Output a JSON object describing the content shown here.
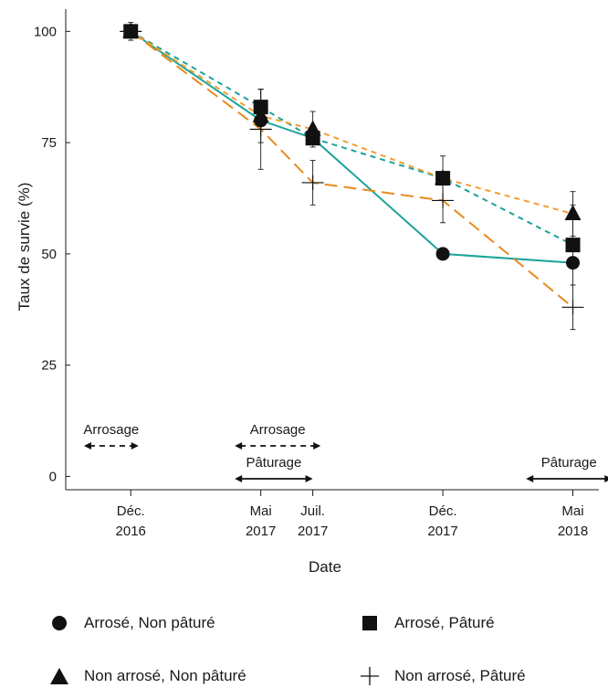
{
  "chart_data": {
    "type": "line",
    "title": "",
    "xlabel": "Date",
    "ylabel": "Taux de survie (%)",
    "ylim": [
      -3,
      105
    ],
    "yticks": [
      0,
      25,
      50,
      75,
      100
    ],
    "ytick_labels": [
      "0",
      "25",
      "50",
      "75",
      "100"
    ],
    "x_dates": [
      "2016-12",
      "2017-05",
      "2017-07",
      "2017-12",
      "2018-05"
    ],
    "x_positions": [
      0,
      5,
      7,
      12,
      17
    ],
    "xlim": [
      -2.5,
      18
    ],
    "x_tick_labels": [
      {
        "line1": "Déc.",
        "line2": "2016"
      },
      {
        "line1": "Mai",
        "line2": "2017"
      },
      {
        "line1": "Juil.",
        "line2": "2017"
      },
      {
        "line1": "Déc.",
        "line2": "2017"
      },
      {
        "line1": "Mai",
        "line2": "2018"
      }
    ],
    "series": [
      {
        "name": "Arrosé, Non pâturé",
        "marker": "circle",
        "color": "#1aa39a",
        "dash": "solid",
        "values": [
          100,
          80,
          76,
          50,
          48
        ],
        "err": [
          0,
          0,
          0,
          0,
          0
        ]
      },
      {
        "name": "Arrosé, Pâturé",
        "marker": "square",
        "color": "#1aa39a",
        "dash": "short",
        "values": [
          100,
          83,
          76,
          67,
          52
        ],
        "err": [
          0,
          4,
          0,
          0,
          9
        ]
      },
      {
        "name": "Non arrosé, Non pâturé",
        "marker": "triangle",
        "color": "#f0a030",
        "dash": "short",
        "values": [
          100,
          81,
          78,
          67,
          59
        ],
        "err": [
          0,
          6,
          4,
          5,
          5
        ]
      },
      {
        "name": "Non arrosé, Pâturé",
        "marker": "plus",
        "color": "#e88a20",
        "dash": "long",
        "values": [
          100,
          78,
          66,
          62,
          38
        ],
        "err": [
          2,
          9,
          5,
          5,
          5
        ]
      }
    ],
    "annotations": [
      {
        "label": "Arrosage",
        "x_start": -1.8,
        "x_end": 0.3,
        "row": "upper",
        "style": "dashed"
      },
      {
        "label": "Arrosage",
        "x_start": 4.0,
        "x_end": 7.3,
        "row": "upper",
        "style": "dashed"
      },
      {
        "label": "Pâturage",
        "x_start": 4.0,
        "x_end": 7.0,
        "row": "lower",
        "style": "solid"
      },
      {
        "label": "Pâturage",
        "x_start": 15.2,
        "x_end": 18.5,
        "row": "lower",
        "style": "solid"
      }
    ],
    "legend_position": "bottom"
  }
}
